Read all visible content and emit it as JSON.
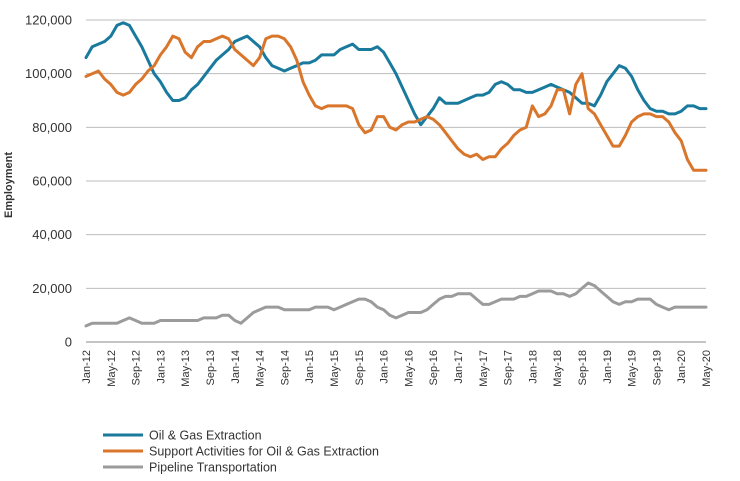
{
  "chart_data": {
    "type": "line",
    "title": "",
    "xlabel": "",
    "ylabel": "Employment",
    "ylim": [
      0,
      120000
    ],
    "yticks": [
      0,
      20000,
      40000,
      60000,
      80000,
      100000,
      120000
    ],
    "ytick_labels": [
      "0",
      "20,000",
      "40,000",
      "60,000",
      "80,000",
      "100,000",
      "120,000"
    ],
    "x_tick_labels": [
      "Jan-12",
      "May-12",
      "Sep-12",
      "Jan-13",
      "May-13",
      "Sep-13",
      "Jan-14",
      "May-14",
      "Sep-14",
      "Jan-15",
      "May-15",
      "Sep-15",
      "Jan-16",
      "May-16",
      "Sep-16",
      "Jan-17",
      "May-17",
      "Sep-17",
      "Jan-18",
      "May-18",
      "Sep-18",
      "Jan-19",
      "May-19",
      "Sep-19",
      "Jan-20",
      "May-20"
    ],
    "grid": "horizontal",
    "legend_position": "bottom-left",
    "series": [
      {
        "name": "Oil & Gas Extraction",
        "color": "#1a7a9e",
        "values": [
          106000,
          110000,
          111000,
          112000,
          114000,
          118000,
          119000,
          118000,
          114000,
          110000,
          105000,
          100000,
          97000,
          93000,
          90000,
          90000,
          91000,
          94000,
          96000,
          99000,
          102000,
          105000,
          107000,
          109000,
          112000,
          113000,
          114000,
          112000,
          110000,
          106000,
          103000,
          102000,
          101000,
          102000,
          103000,
          104000,
          104000,
          105000,
          107000,
          107000,
          107000,
          109000,
          110000,
          111000,
          109000,
          109000,
          109000,
          110000,
          108000,
          104000,
          100000,
          95000,
          90000,
          85000,
          81000,
          84000,
          87000,
          91000,
          89000,
          89000,
          89000,
          90000,
          91000,
          92000,
          92000,
          93000,
          96000,
          97000,
          96000,
          94000,
          94000,
          93000,
          93000,
          94000,
          95000,
          96000,
          95000,
          94000,
          93000,
          91000,
          89000,
          89000,
          88000,
          92000,
          97000,
          100000,
          103000,
          102000,
          99000,
          94000,
          90000,
          87000,
          86000,
          86000,
          85000,
          85000,
          86000,
          88000,
          88000,
          87000,
          87000
        ]
      },
      {
        "name": "Support Activities for Oil & Gas Extraction",
        "color": "#d9762b",
        "values": [
          99000,
          100000,
          101000,
          98000,
          96000,
          93000,
          92000,
          93000,
          96000,
          98000,
          101000,
          103000,
          107000,
          110000,
          114000,
          113000,
          108000,
          106000,
          110000,
          112000,
          112000,
          113000,
          114000,
          113000,
          109000,
          107000,
          105000,
          103000,
          106000,
          113000,
          114000,
          114000,
          113000,
          110000,
          105000,
          97000,
          92000,
          88000,
          87000,
          88000,
          88000,
          88000,
          88000,
          87000,
          81000,
          78000,
          79000,
          84000,
          84000,
          80000,
          79000,
          81000,
          82000,
          82000,
          83000,
          84000,
          83000,
          81000,
          78000,
          75000,
          72000,
          70000,
          69000,
          70000,
          68000,
          69000,
          69000,
          72000,
          74000,
          77000,
          79000,
          80000,
          88000,
          84000,
          85000,
          88000,
          94000,
          94000,
          85000,
          96000,
          100000,
          87000,
          85000,
          81000,
          77000,
          73000,
          73000,
          77000,
          82000,
          84000,
          85000,
          85000,
          84000,
          84000,
          82000,
          78000,
          75000,
          68000,
          64000,
          64000,
          64000
        ]
      },
      {
        "name": "Pipeline Transportation",
        "color": "#9b9b9b",
        "values": [
          6000,
          7000,
          7000,
          7000,
          7000,
          7000,
          8000,
          9000,
          8000,
          7000,
          7000,
          7000,
          8000,
          8000,
          8000,
          8000,
          8000,
          8000,
          8000,
          9000,
          9000,
          9000,
          10000,
          10000,
          8000,
          7000,
          9000,
          11000,
          12000,
          13000,
          13000,
          13000,
          12000,
          12000,
          12000,
          12000,
          12000,
          13000,
          13000,
          13000,
          12000,
          13000,
          14000,
          15000,
          16000,
          16000,
          15000,
          13000,
          12000,
          10000,
          9000,
          10000,
          11000,
          11000,
          11000,
          12000,
          14000,
          16000,
          17000,
          17000,
          18000,
          18000,
          18000,
          16000,
          14000,
          14000,
          15000,
          16000,
          16000,
          16000,
          17000,
          17000,
          18000,
          19000,
          19000,
          19000,
          18000,
          18000,
          17000,
          18000,
          20000,
          22000,
          21000,
          19000,
          17000,
          15000,
          14000,
          15000,
          15000,
          16000,
          16000,
          16000,
          14000,
          13000,
          12000,
          13000,
          13000,
          13000,
          13000,
          13000,
          13000
        ]
      }
    ]
  }
}
